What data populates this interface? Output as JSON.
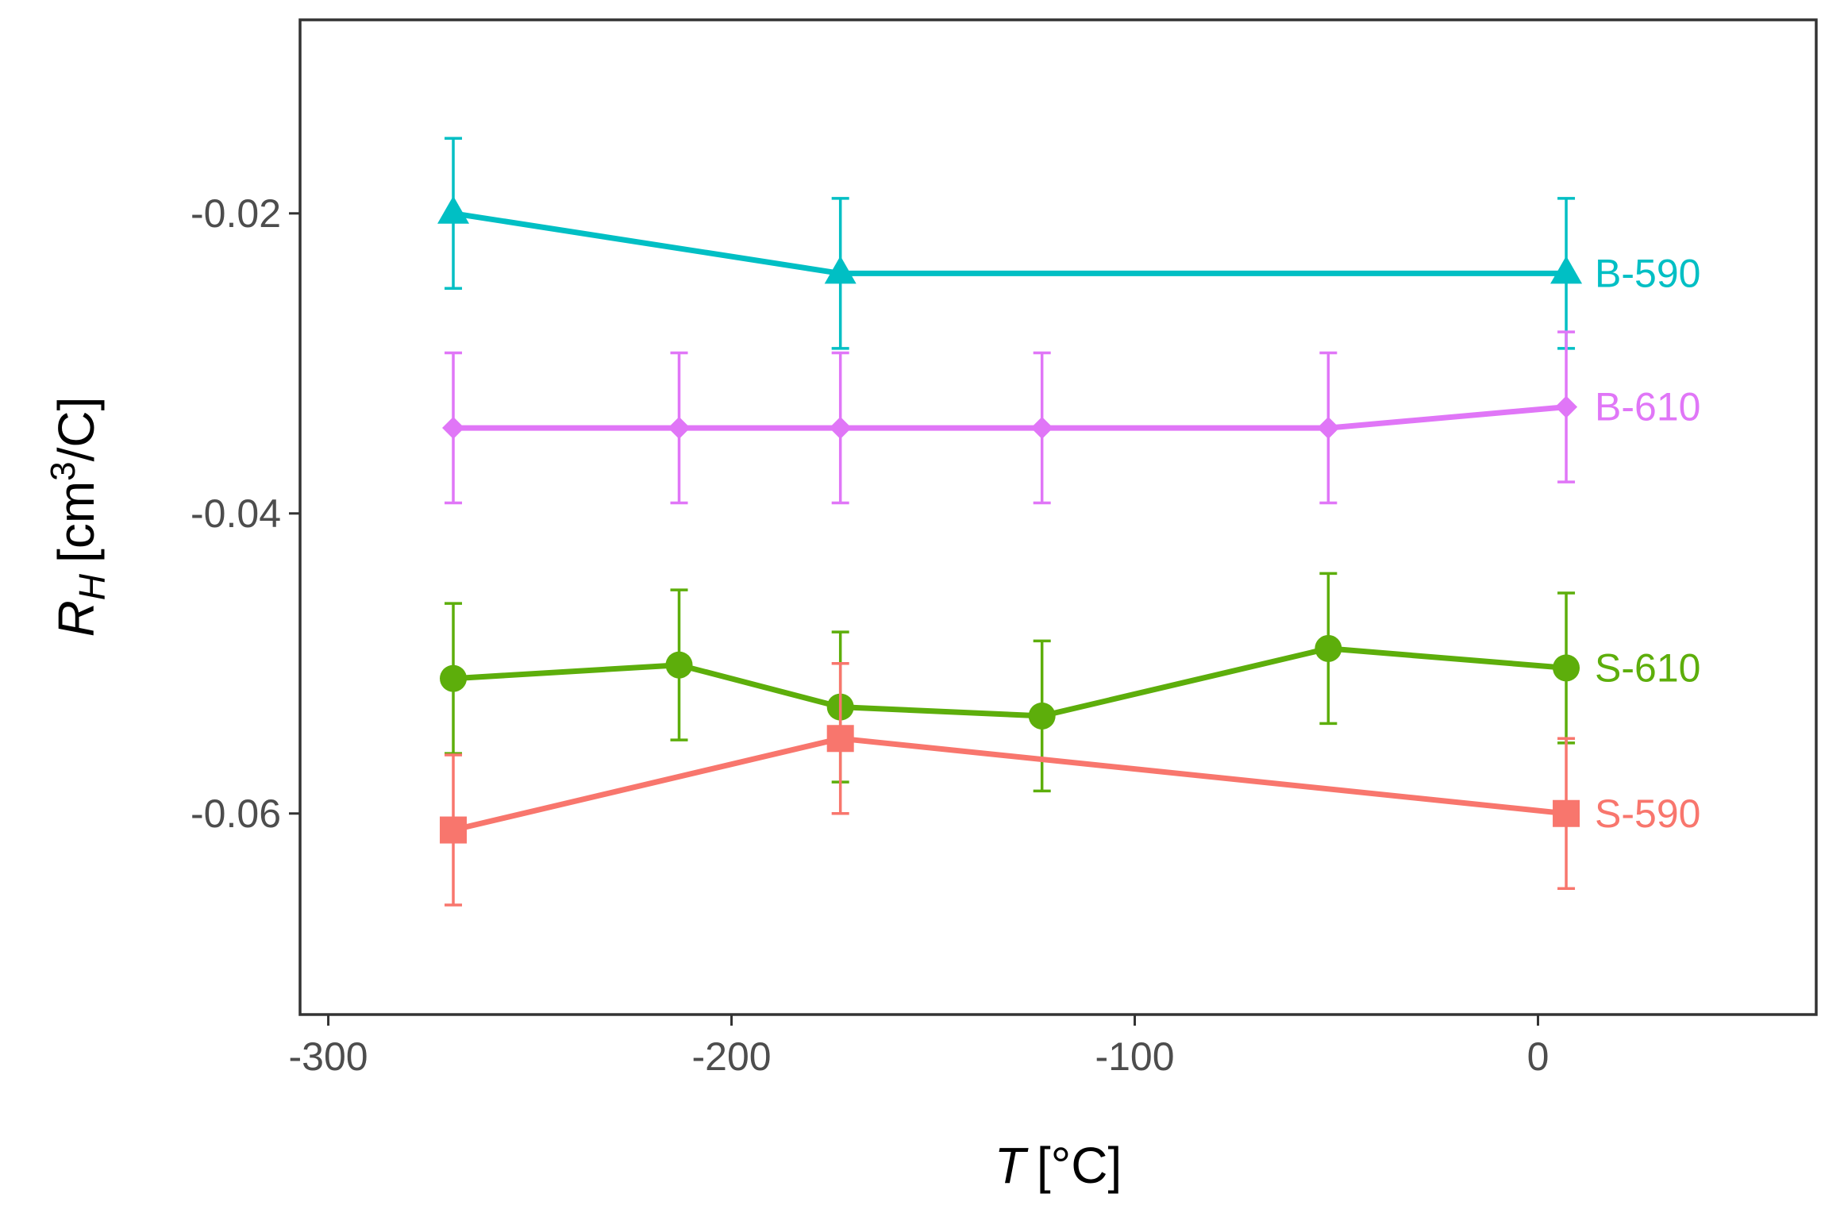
{
  "chart_data": {
    "type": "line",
    "xlabel_var": "T",
    "xlabel_unit": "[°C]",
    "ylabel_var": "R",
    "ylabel_sub": "H",
    "ylabel_unit_pre": "[cm",
    "ylabel_unit_sup": "3",
    "ylabel_unit_post": "/C]",
    "xlim": [
      -307,
      69
    ],
    "ylim": [
      -0.0734,
      -0.0071
    ],
    "x_ticks": [
      {
        "value": -300,
        "label": "-300"
      },
      {
        "value": -200,
        "label": "-200"
      },
      {
        "value": -100,
        "label": "-100"
      },
      {
        "value": 0,
        "label": "0"
      }
    ],
    "y_ticks": [
      {
        "value": -0.02,
        "label": "-0.02"
      },
      {
        "value": -0.04,
        "label": "-0.04"
      },
      {
        "value": -0.06,
        "label": "-0.06"
      }
    ],
    "grid": false,
    "legend": "direct labels at right end of each series",
    "series": [
      {
        "name": "B-590",
        "color": "#00BFC4",
        "marker": "triangle",
        "points": [
          {
            "x": -269,
            "y": -0.02,
            "err": 0.005
          },
          {
            "x": -173,
            "y": -0.024,
            "err": 0.005
          },
          {
            "x": 7,
            "y": -0.024,
            "err": 0.005
          }
        ]
      },
      {
        "name": "B-610",
        "color": "#E076F7",
        "marker": "diamond",
        "points": [
          {
            "x": -269,
            "y": -0.0343,
            "err": 0.005
          },
          {
            "x": -213,
            "y": -0.0343,
            "err": 0.005
          },
          {
            "x": -173,
            "y": -0.0343,
            "err": 0.005
          },
          {
            "x": -123,
            "y": -0.0343,
            "err": 0.005
          },
          {
            "x": -52,
            "y": -0.0343,
            "err": 0.005
          },
          {
            "x": 7,
            "y": -0.0329,
            "err": 0.005
          }
        ]
      },
      {
        "name": "S-610",
        "color": "#5DAE0B",
        "marker": "circle",
        "points": [
          {
            "x": -269,
            "y": -0.051,
            "err": 0.005
          },
          {
            "x": -213,
            "y": -0.0501,
            "err": 0.005
          },
          {
            "x": -173,
            "y": -0.0529,
            "err": 0.005
          },
          {
            "x": -123,
            "y": -0.0535,
            "err": 0.005
          },
          {
            "x": -52,
            "y": -0.049,
            "err": 0.005
          },
          {
            "x": 7,
            "y": -0.0503,
            "err": 0.005
          }
        ]
      },
      {
        "name": "S-590",
        "color": "#F8766D",
        "marker": "square",
        "points": [
          {
            "x": -269,
            "y": -0.0611,
            "err": 0.005
          },
          {
            "x": -173,
            "y": -0.055,
            "err": 0.005
          },
          {
            "x": 7,
            "y": -0.06,
            "err": 0.005
          }
        ]
      }
    ]
  }
}
